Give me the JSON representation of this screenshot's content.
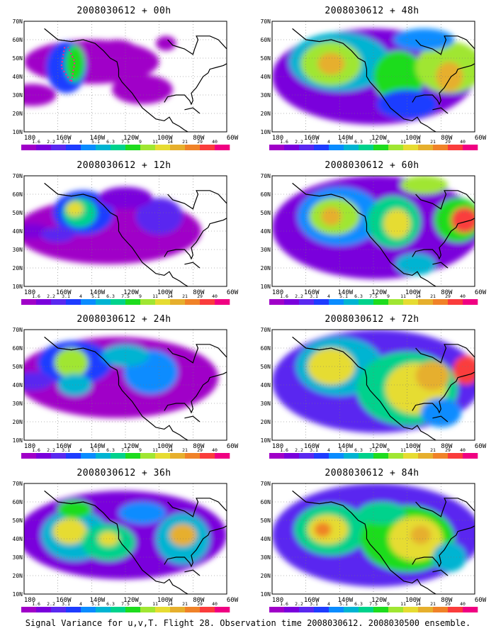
{
  "panels": [
    {
      "title": "2008030612 + 00h",
      "hour": "00h"
    },
    {
      "title": "2008030612 + 48h",
      "hour": "48h"
    },
    {
      "title": "2008030612 + 12h",
      "hour": "12h"
    },
    {
      "title": "2008030612 + 60h",
      "hour": "60h"
    },
    {
      "title": "2008030612 + 24h",
      "hour": "24h"
    },
    {
      "title": "2008030612 + 72h",
      "hour": "72h"
    },
    {
      "title": "2008030612 + 36h",
      "hour": "36h"
    },
    {
      "title": "2008030612 + 84h",
      "hour": "84h"
    }
  ],
  "lat_labels": [
    "70N",
    "60N",
    "50N",
    "40N",
    "30N",
    "20N",
    "10N"
  ],
  "lon_labels": [
    "180",
    "160W",
    "140W",
    "120W",
    "100W",
    "80W",
    "60W"
  ],
  "colorbar": {
    "labels": [
      "1.6",
      "2.2",
      "3.1",
      "4",
      "5.1",
      "6.3",
      "7.5",
      "9",
      "11",
      "14",
      "21",
      "29",
      "40"
    ],
    "colors": [
      "#a000c8",
      "#7a00dc",
      "#5a28f0",
      "#1e3cff",
      "#0a8cff",
      "#00b4d2",
      "#00d28c",
      "#1edc1e",
      "#a0e632",
      "#e6dc32",
      "#e6af2d",
      "#f08228",
      "#fa3c3c",
      "#f00082"
    ]
  },
  "caption": "Signal Variance for u,v,T. Flight 28. Observation time 2008030612. 2008030500 ensemble."
}
